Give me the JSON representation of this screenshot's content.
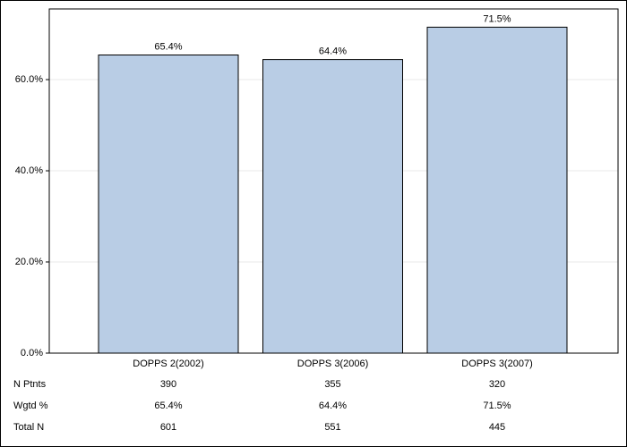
{
  "chart_data": {
    "type": "bar",
    "categories": [
      "DOPPS 2(2002)",
      "DOPPS 3(2006)",
      "DOPPS 3(2007)"
    ],
    "values": [
      65.4,
      64.4,
      71.5
    ],
    "value_labels": [
      "65.4%",
      "64.4%",
      "71.5%"
    ],
    "color": "#b9cde5",
    "ylim": [
      0,
      75.5
    ],
    "yticks": [
      {
        "value": 0,
        "label": "0.0%"
      },
      {
        "value": 20,
        "label": "20.0%"
      },
      {
        "value": 40,
        "label": "40.0%"
      },
      {
        "value": 60,
        "label": "60.0%"
      }
    ],
    "grid": true,
    "table": {
      "rows": [
        {
          "label": "N Ptnts",
          "values": [
            390,
            355,
            320
          ]
        },
        {
          "label": "Wgtd %",
          "values": [
            "65.4%",
            "64.4%",
            "71.5%"
          ]
        },
        {
          "label": "Total N",
          "values": [
            601,
            551,
            445
          ]
        }
      ]
    }
  }
}
